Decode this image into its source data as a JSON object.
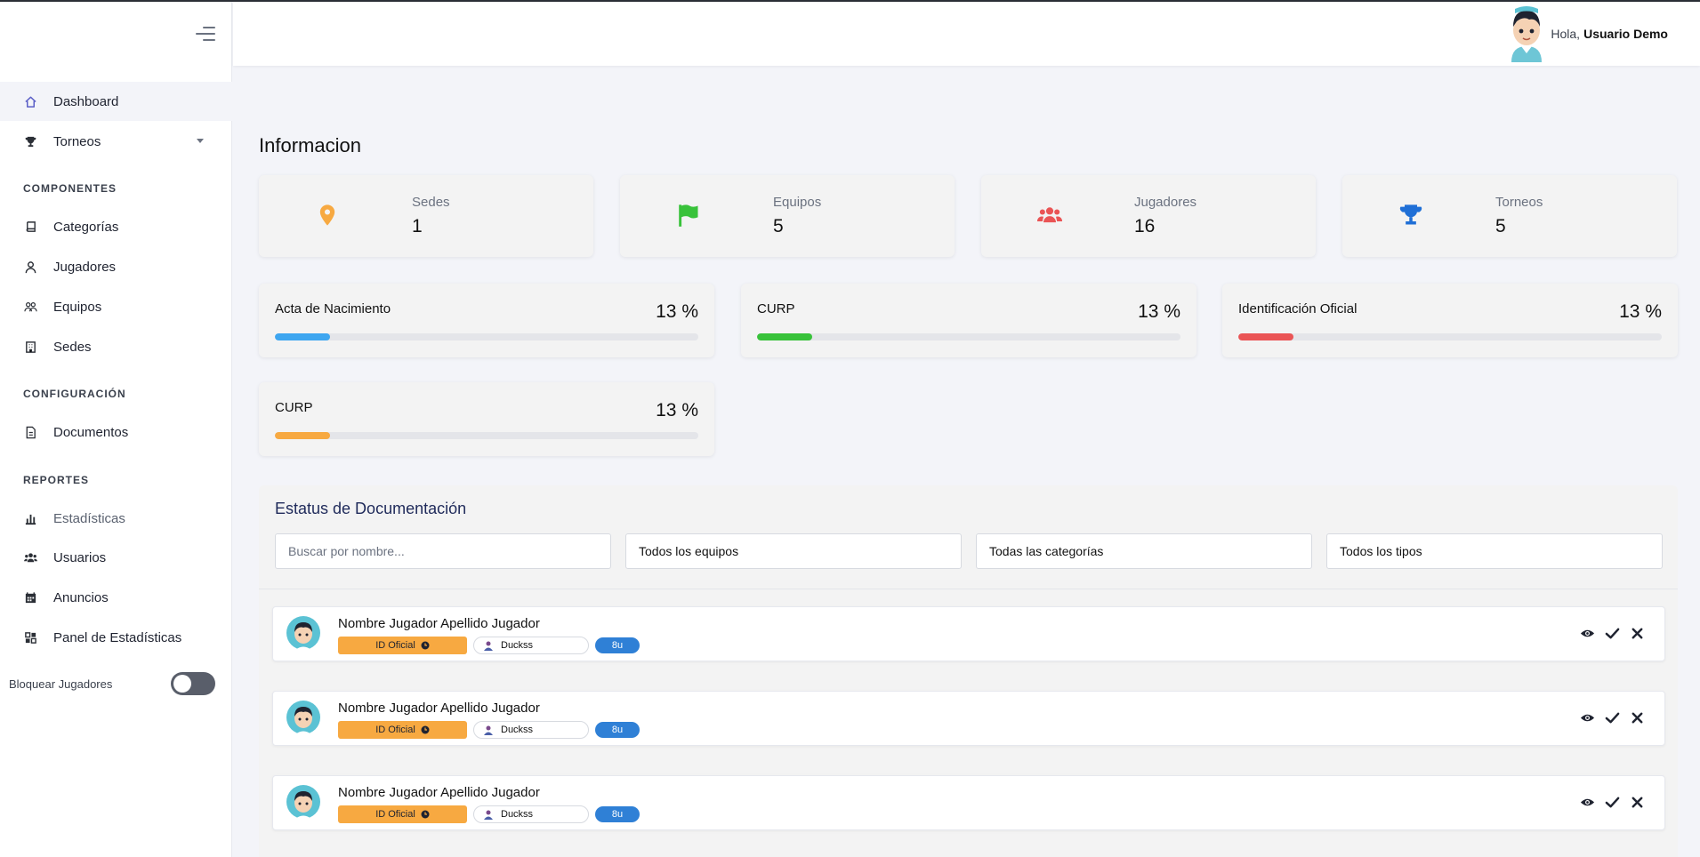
{
  "sidebar": {
    "items": [
      {
        "label": "Dashboard",
        "icon": "home-icon"
      },
      {
        "label": "Torneos",
        "icon": "trophy-icon"
      },
      {
        "label": "Categorías",
        "icon": "book-icon"
      },
      {
        "label": "Jugadores",
        "icon": "user-icon"
      },
      {
        "label": "Equipos",
        "icon": "users-icon"
      },
      {
        "label": "Sedes",
        "icon": "building-icon"
      },
      {
        "label": "Documentos",
        "icon": "document-icon"
      },
      {
        "label": "Estadísticas",
        "icon": "chart-bar-icon"
      },
      {
        "label": "Usuarios",
        "icon": "users-group-icon"
      },
      {
        "label": "Anuncios",
        "icon": "calendar-icon"
      },
      {
        "label": "Panel de Estadísticas",
        "icon": "grid-icon"
      }
    ],
    "sections": {
      "componentes": "COMPONENTES",
      "configuracion": "CONFIGURACIÓN",
      "reportes": "REPORTES"
    },
    "block_players_label": "Bloquear Jugadores"
  },
  "topbar": {
    "greeting": "Hola,",
    "user_name": "Usuario Demo"
  },
  "main": {
    "heading": "Informacion",
    "stats": [
      {
        "label": "Sedes",
        "value": "1",
        "icon": "map-pin-icon",
        "color": "#f7a941"
      },
      {
        "label": "Equipos",
        "value": "5",
        "icon": "flag-icon",
        "color": "#38c23a"
      },
      {
        "label": "Jugadores",
        "value": "16",
        "icon": "users-icon",
        "color": "#ea5455"
      },
      {
        "label": "Torneos",
        "value": "5",
        "icon": "trophy-icon",
        "color": "#1f6fd6"
      }
    ],
    "progress": [
      {
        "label": "Acta de Nacimiento",
        "value_text": "13 %",
        "percent": 13,
        "color": "#3ea6f0"
      },
      {
        "label": "CURP",
        "value_text": "13 %",
        "percent": 13,
        "color": "#38c23a"
      },
      {
        "label": "Identificación Oficial",
        "value_text": "13 %",
        "percent": 13,
        "color": "#ea5455"
      },
      {
        "label": "CURP",
        "value_text": "13 %",
        "percent": 13,
        "color": "#f7a941"
      }
    ],
    "docs": {
      "title": "Estatus de Documentación",
      "search_placeholder": "Buscar por nombre...",
      "filters": [
        "Todos los equipos",
        "Todas las categorías",
        "Todos los tipos"
      ],
      "rows": [
        {
          "name": "Nombre Jugador Apellido Jugador",
          "doc": "ID Oficial",
          "team": "Duckss",
          "category": "8u"
        },
        {
          "name": "Nombre Jugador Apellido Jugador",
          "doc": "ID Oficial",
          "team": "Duckss",
          "category": "8u"
        },
        {
          "name": "Nombre Jugador Apellido Jugador",
          "doc": "ID Oficial",
          "team": "Duckss",
          "category": "8u"
        }
      ]
    }
  }
}
